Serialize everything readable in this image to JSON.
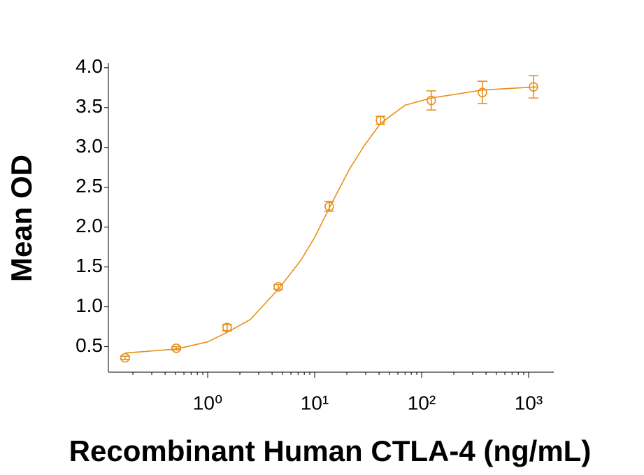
{
  "chart_data": {
    "type": "scatter",
    "x_label": "Recombinant Human CTLA-4 (ng/mL)",
    "y_label": "Mean OD",
    "log_x": true,
    "minor_ticks": true,
    "xlim": [
      0.118,
      1720
    ],
    "ylim": [
      0.18,
      4.06
    ],
    "xticks": [
      {
        "value": 1,
        "label": "10⁰"
      },
      {
        "value": 10,
        "label": "10¹"
      },
      {
        "value": 100,
        "label": "10²"
      },
      {
        "value": 1000,
        "label": "10³"
      }
    ],
    "yticks": [
      0.5,
      {
        "value": 1,
        "label": "1.0"
      },
      1.5,
      {
        "value": 2,
        "label": "2.0"
      },
      2.5,
      {
        "value": 3,
        "label": "3.0"
      },
      3.5,
      {
        "value": 4,
        "label": "4.0"
      }
    ],
    "series": [
      {
        "color": "#E8901A",
        "style": "points",
        "x": [
          0.169,
          0.508,
          1.52,
          4.57,
          13.7,
          41.2,
          123,
          370,
          1111
        ],
        "values": [
          0.36,
          0.48,
          0.74,
          1.25,
          2.26,
          3.34,
          3.59,
          3.69,
          3.76
        ],
        "errors": [
          0.02,
          0.02,
          0.04,
          0.03,
          0.06,
          0.05,
          0.12,
          0.14,
          0.14
        ]
      },
      {
        "color": "#E8901A",
        "style": "line",
        "x": [
          0.169,
          0.508,
          1,
          1.52,
          2.5,
          4.57,
          7.4,
          10,
          13.7,
          21,
          29,
          41.2,
          70,
          123,
          370,
          1200
        ],
        "values": [
          0.42,
          0.47,
          0.56,
          0.68,
          0.84,
          1.22,
          1.58,
          1.87,
          2.24,
          2.72,
          3.02,
          3.3,
          3.53,
          3.62,
          3.72,
          3.76
        ]
      }
    ]
  }
}
